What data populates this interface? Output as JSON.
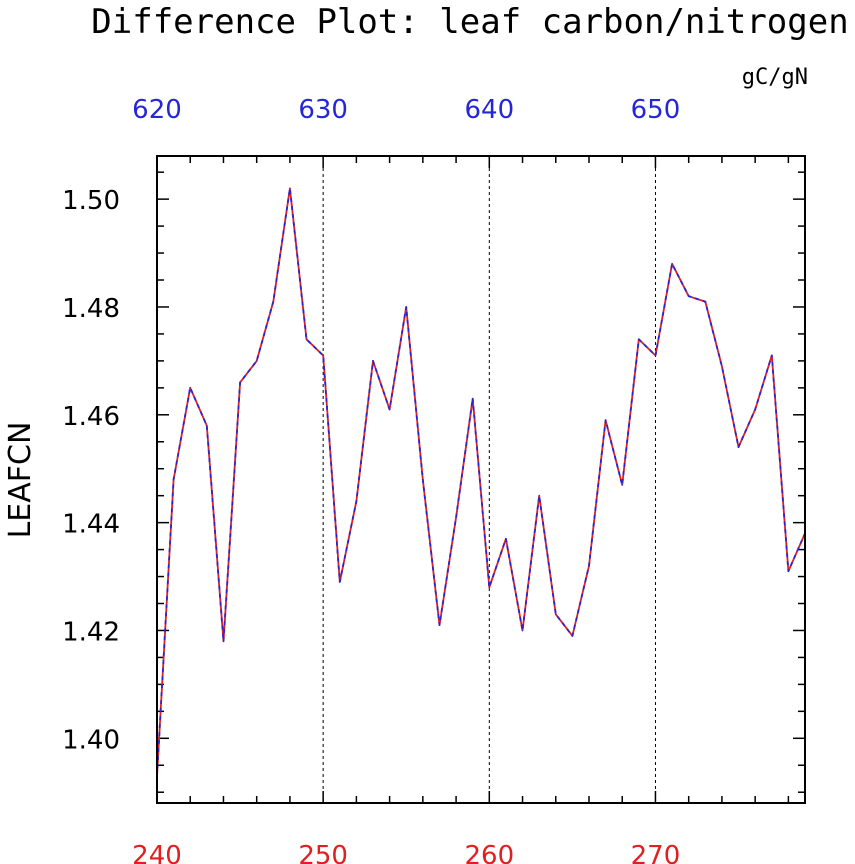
{
  "chart_data": {
    "type": "line",
    "title": "Difference Plot: leaf carbon/nitrogen",
    "units": "gC/gN",
    "ylabel": "LEAFCN",
    "xlim": [
      240,
      279
    ],
    "ylim": [
      1.388,
      1.508
    ],
    "x_ticks_bottom": [
      240,
      250,
      260,
      270
    ],
    "x_ticks_top": [
      {
        "x": 240,
        "label": "620"
      },
      {
        "x": 250,
        "label": "630"
      },
      {
        "x": 260,
        "label": "640"
      },
      {
        "x": 270,
        "label": "650"
      }
    ],
    "y_ticks": [
      {
        "value": 1.4,
        "label": "1.40"
      },
      {
        "value": 1.42,
        "label": "1.42"
      },
      {
        "value": 1.44,
        "label": "1.44"
      },
      {
        "value": 1.46,
        "label": "1.46"
      },
      {
        "value": 1.48,
        "label": "1.48"
      },
      {
        "value": 1.5,
        "label": "1.50"
      }
    ],
    "vertical_grid_x": [
      250,
      260,
      270
    ],
    "bottom_axis_color": "#e02020",
    "top_axis_color": "#2626d9",
    "series": [
      {
        "color": "#e02020",
        "x": [
          240,
          241,
          242,
          243,
          244,
          245,
          246,
          247,
          248,
          249,
          250,
          251,
          252,
          253,
          254,
          255,
          256,
          257,
          258,
          259,
          260,
          261,
          262,
          263,
          264,
          265,
          266,
          267,
          268,
          269,
          270,
          271,
          272,
          273,
          274,
          275,
          276,
          277,
          278,
          279
        ],
        "values": [
          1.393,
          1.448,
          1.465,
          1.458,
          1.418,
          1.466,
          1.47,
          1.481,
          1.502,
          1.474,
          1.471,
          1.429,
          1.444,
          1.47,
          1.461,
          1.48,
          1.448,
          1.421,
          1.441,
          1.463,
          1.428,
          1.437,
          1.42,
          1.445,
          1.423,
          1.419,
          1.432,
          1.459,
          1.447,
          1.474,
          1.471,
          1.488,
          1.482,
          1.481,
          1.469,
          1.454,
          1.461,
          1.471,
          1.431,
          1.438
        ]
      },
      {
        "color": "#2626d9",
        "dashed": true,
        "x": [
          240,
          241,
          242,
          243,
          244,
          245,
          246,
          247,
          248,
          249,
          250,
          251,
          252,
          253,
          254,
          255,
          256,
          257,
          258,
          259,
          260,
          261,
          262,
          263,
          264,
          265,
          266,
          267,
          268,
          269,
          270,
          271,
          272,
          273,
          274,
          275,
          276,
          277,
          278,
          279
        ],
        "values": [
          1.393,
          1.448,
          1.465,
          1.458,
          1.418,
          1.466,
          1.47,
          1.481,
          1.502,
          1.474,
          1.471,
          1.429,
          1.444,
          1.47,
          1.461,
          1.48,
          1.448,
          1.421,
          1.441,
          1.463,
          1.428,
          1.437,
          1.42,
          1.445,
          1.423,
          1.419,
          1.432,
          1.459,
          1.447,
          1.474,
          1.471,
          1.488,
          1.482,
          1.481,
          1.469,
          1.454,
          1.461,
          1.471,
          1.431,
          1.438
        ]
      }
    ]
  }
}
